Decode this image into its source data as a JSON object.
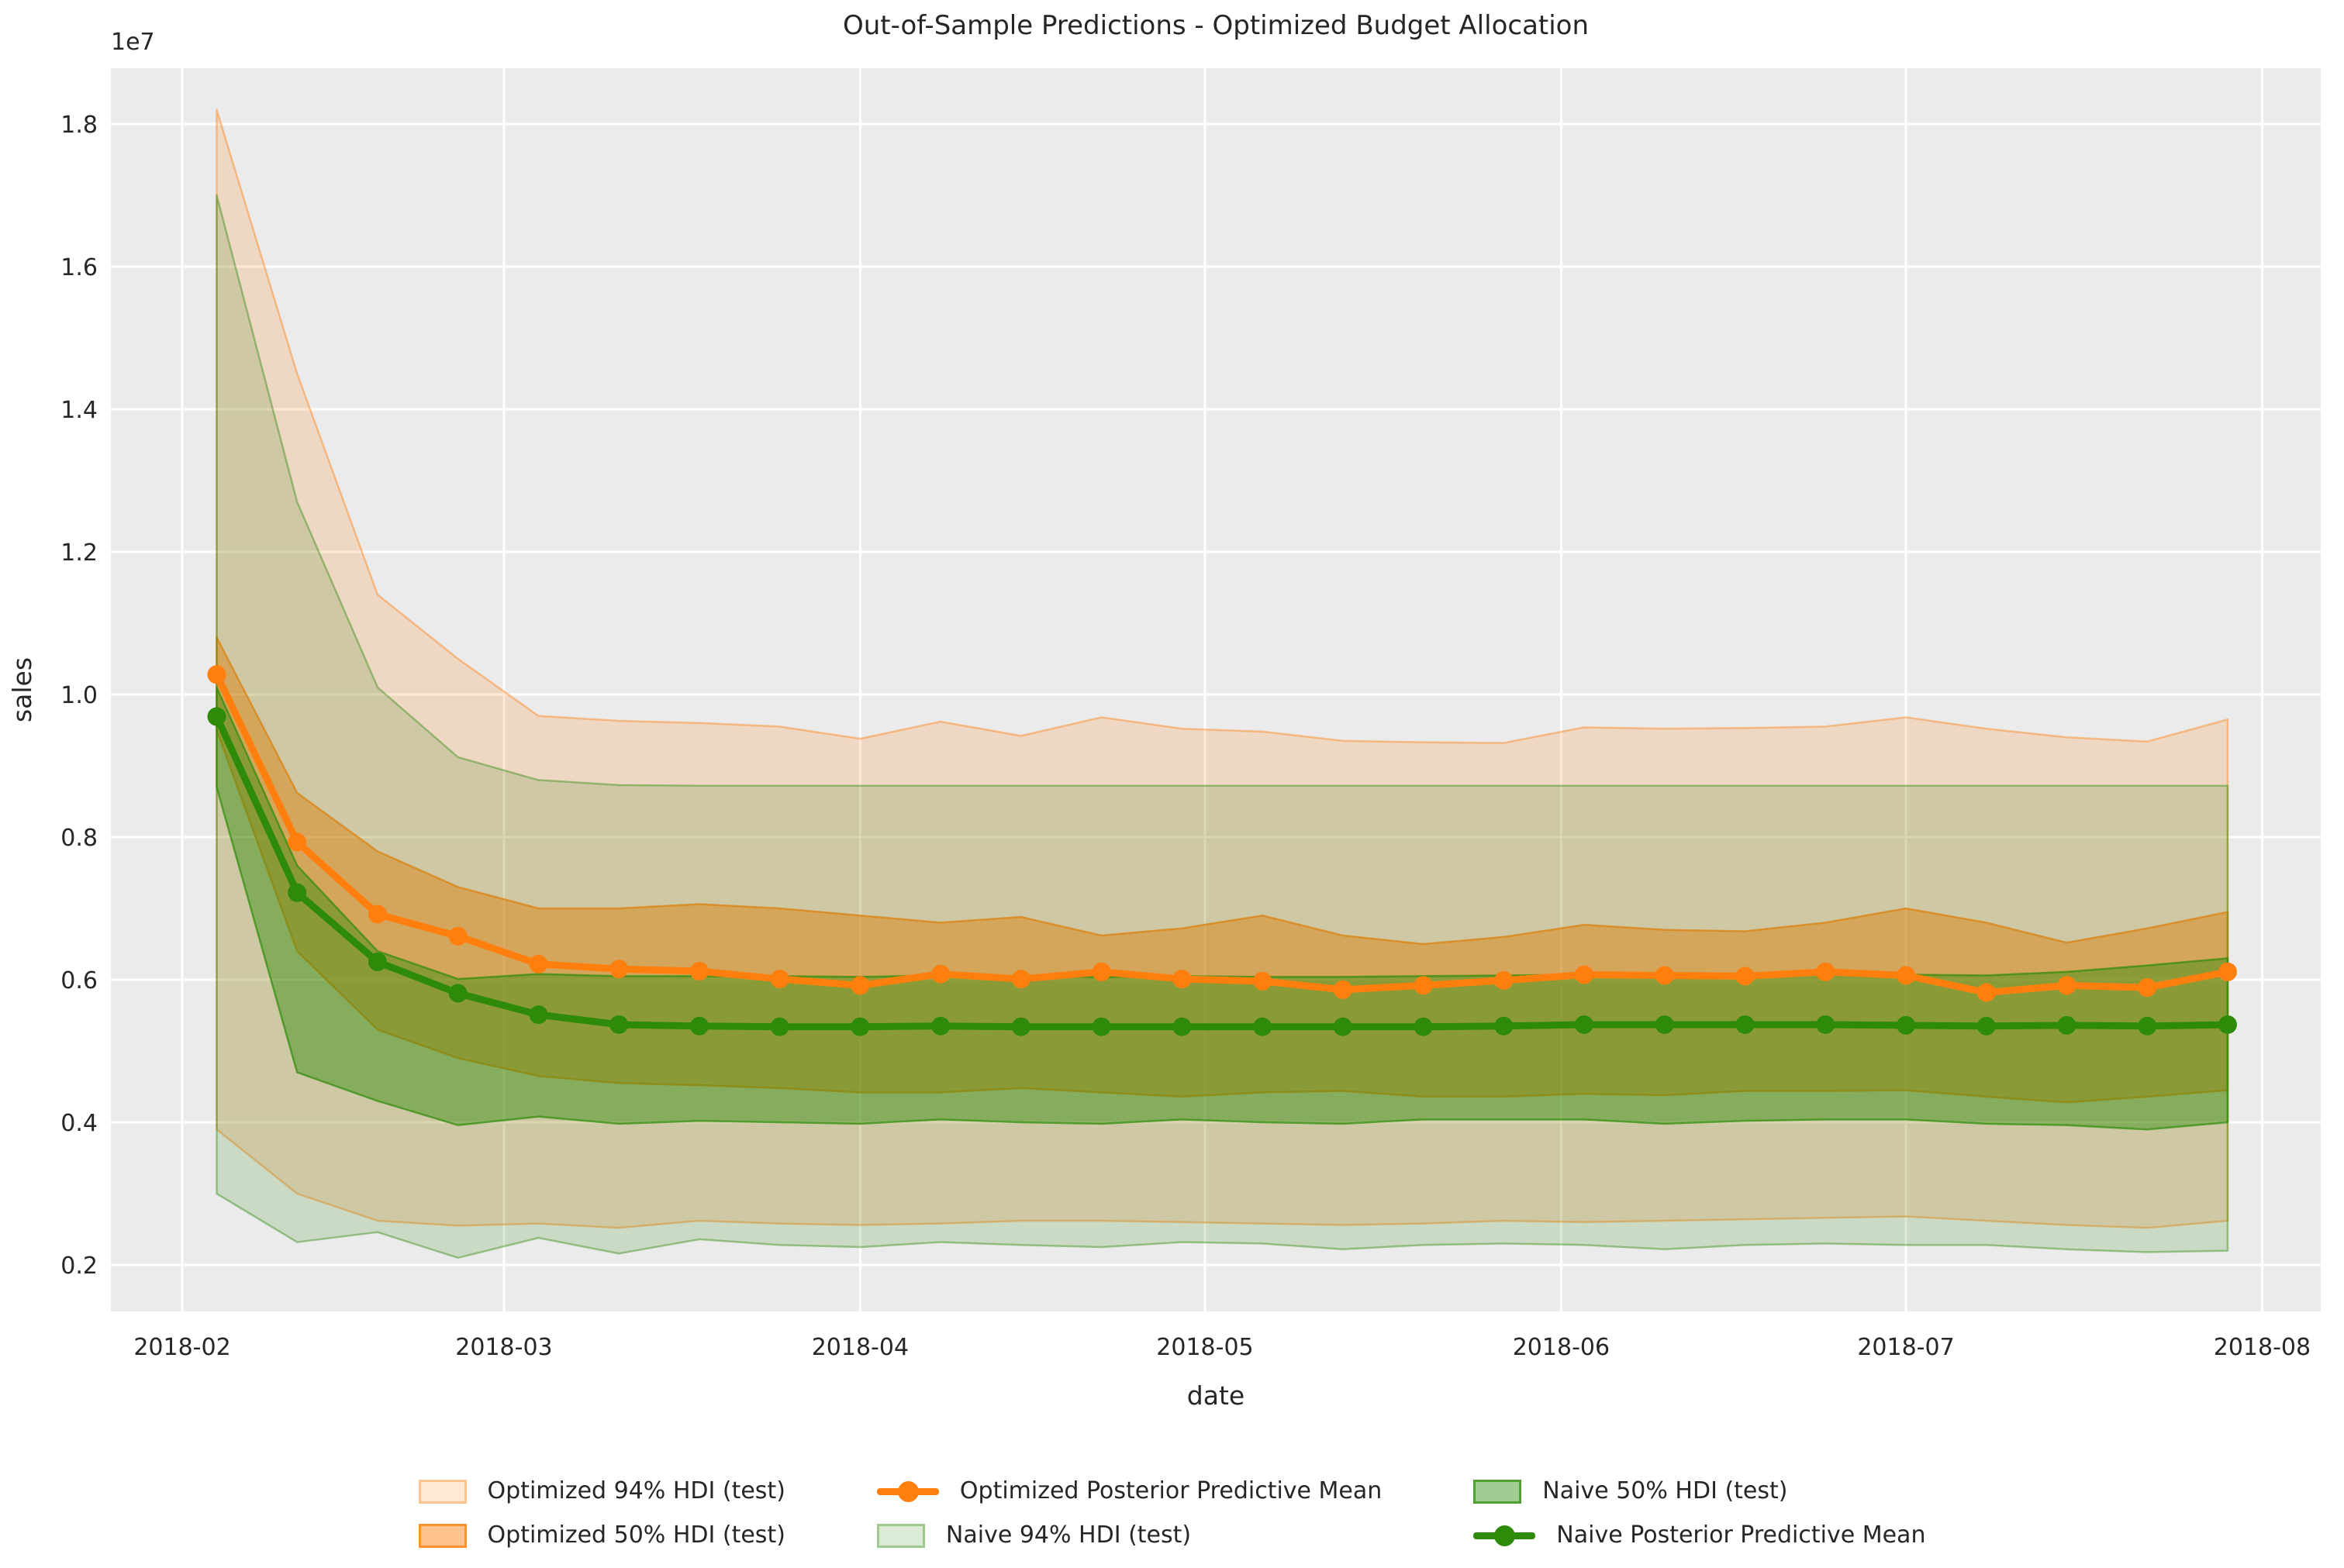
{
  "title": "Out-of-Sample Predictions - Optimized Budget Allocation",
  "axes": {
    "xlabel": "date",
    "ylabel": "sales",
    "offset_label": "1e7",
    "x_ticks": [
      {
        "label": "2018-02",
        "day": 0
      },
      {
        "label": "2018-03",
        "day": 28
      },
      {
        "label": "2018-04",
        "day": 59
      },
      {
        "label": "2018-05",
        "day": 89
      },
      {
        "label": "2018-06",
        "day": 120
      },
      {
        "label": "2018-07",
        "day": 150
      },
      {
        "label": "2018-08",
        "day": 181
      }
    ],
    "y_ticks": [
      {
        "label": "0.2",
        "value": 0.2
      },
      {
        "label": "0.4",
        "value": 0.4
      },
      {
        "label": "0.6",
        "value": 0.6
      },
      {
        "label": "0.8",
        "value": 0.8
      },
      {
        "label": "1.0",
        "value": 1.0
      },
      {
        "label": "1.2",
        "value": 1.2
      },
      {
        "label": "1.4",
        "value": 1.4
      },
      {
        "label": "1.6",
        "value": 1.6
      },
      {
        "label": "1.8",
        "value": 1.8
      }
    ]
  },
  "colors": {
    "orange": "#ff7f0e",
    "green": "#2e8b09",
    "plot_background": "#ebebeb",
    "grid": "#ffffff",
    "text": "#262626",
    "figure_background": "#ffffff"
  },
  "legend": {
    "items": [
      {
        "label": "Optimized 94% HDI (test)"
      },
      {
        "label": "Optimized 50% HDI (test)"
      },
      {
        "label": "Optimized Posterior Predictive Mean"
      },
      {
        "label": "Naive 94% HDI (test)"
      },
      {
        "label": "Naive 50% HDI (test)"
      },
      {
        "label": "Naive Posterior Predictive Mean"
      }
    ]
  },
  "chart_data": {
    "type": "line",
    "title": "Out-of-Sample Predictions - Optimized Budget Allocation",
    "xlabel": "date",
    "ylabel": "sales",
    "y_scale_factor": "1e7",
    "ylim": [
      0.135,
      1.878
    ],
    "x_range": [
      "2018-02",
      "2018-08"
    ],
    "grid": true,
    "legend_position": "bottom",
    "x_dates": [
      "2018-02-04",
      "2018-02-11",
      "2018-02-18",
      "2018-02-25",
      "2018-03-04",
      "2018-03-11",
      "2018-03-18",
      "2018-03-25",
      "2018-04-01",
      "2018-04-08",
      "2018-04-15",
      "2018-04-22",
      "2018-04-29",
      "2018-05-06",
      "2018-05-13",
      "2018-05-20",
      "2018-05-27",
      "2018-06-03",
      "2018-06-10",
      "2018-06-17",
      "2018-06-24",
      "2018-07-01",
      "2018-07-08",
      "2018-07-15",
      "2018-07-22",
      "2018-07-29"
    ],
    "x_days": [
      3,
      10,
      17,
      24,
      31,
      38,
      45,
      52,
      59,
      66,
      73,
      80,
      87,
      94,
      101,
      108,
      115,
      122,
      129,
      136,
      143,
      150,
      157,
      164,
      171,
      178
    ],
    "series": [
      {
        "name": "Optimized Posterior Predictive Mean",
        "color": "orange",
        "values": [
          1.028,
          0.793,
          0.692,
          0.661,
          0.622,
          0.615,
          0.612,
          0.601,
          0.592,
          0.608,
          0.601,
          0.611,
          0.601,
          0.598,
          0.586,
          0.592,
          0.599,
          0.607,
          0.606,
          0.605,
          0.611,
          0.606,
          0.582,
          0.592,
          0.589,
          0.611
        ]
      },
      {
        "name": "Naive Posterior Predictive Mean",
        "color": "green",
        "values": [
          0.969,
          0.722,
          0.625,
          0.581,
          0.551,
          0.537,
          0.535,
          0.534,
          0.534,
          0.535,
          0.534,
          0.534,
          0.534,
          0.534,
          0.534,
          0.534,
          0.535,
          0.537,
          0.537,
          0.537,
          0.537,
          0.536,
          0.535,
          0.536,
          0.535,
          0.537
        ]
      }
    ],
    "bands": [
      {
        "name": "Optimized 94% HDI (test)",
        "color": "orange",
        "alpha": 0.18,
        "upper": [
          1.82,
          1.45,
          1.14,
          1.05,
          0.97,
          0.963,
          0.96,
          0.955,
          0.938,
          0.962,
          0.942,
          0.968,
          0.952,
          0.948,
          0.935,
          0.933,
          0.932,
          0.954,
          0.952,
          0.953,
          0.955,
          0.968,
          0.952,
          0.94,
          0.934,
          0.965
        ],
        "lower": [
          0.39,
          0.3,
          0.262,
          0.255,
          0.258,
          0.252,
          0.262,
          0.258,
          0.256,
          0.258,
          0.262,
          0.262,
          0.26,
          0.258,
          0.256,
          0.258,
          0.262,
          0.26,
          0.262,
          0.264,
          0.266,
          0.268,
          0.262,
          0.256,
          0.252,
          0.262
        ]
      },
      {
        "name": "Optimized 50% HDI (test)",
        "color": "orange",
        "alpha": 0.48,
        "upper": [
          1.08,
          0.862,
          0.78,
          0.73,
          0.7,
          0.7,
          0.706,
          0.7,
          0.69,
          0.68,
          0.688,
          0.662,
          0.672,
          0.69,
          0.662,
          0.65,
          0.66,
          0.677,
          0.67,
          0.668,
          0.68,
          0.7,
          0.68,
          0.652,
          0.672,
          0.695
        ],
        "lower": [
          0.95,
          0.64,
          0.53,
          0.49,
          0.465,
          0.455,
          0.452,
          0.448,
          0.442,
          0.442,
          0.448,
          0.442,
          0.436,
          0.442,
          0.444,
          0.436,
          0.436,
          0.44,
          0.438,
          0.444,
          0.444,
          0.445,
          0.436,
          0.428,
          0.436,
          0.445
        ]
      },
      {
        "name": "Naive 94% HDI (test)",
        "color": "green",
        "alpha": 0.17,
        "upper": [
          1.7,
          1.27,
          1.01,
          0.912,
          0.88,
          0.873,
          0.872,
          0.872,
          0.872,
          0.872,
          0.872,
          0.872,
          0.872,
          0.872,
          0.872,
          0.872,
          0.872,
          0.872,
          0.872,
          0.872,
          0.872,
          0.872,
          0.872,
          0.872,
          0.872,
          0.872
        ],
        "lower": [
          0.3,
          0.232,
          0.246,
          0.21,
          0.238,
          0.216,
          0.236,
          0.228,
          0.225,
          0.232,
          0.228,
          0.225,
          0.232,
          0.23,
          0.222,
          0.228,
          0.23,
          0.228,
          0.222,
          0.228,
          0.23,
          0.228,
          0.228,
          0.222,
          0.218,
          0.22
        ]
      },
      {
        "name": "Naive 50% HDI (test)",
        "color": "green",
        "alpha": 0.45,
        "upper": [
          1.01,
          0.76,
          0.64,
          0.601,
          0.608,
          0.605,
          0.605,
          0.605,
          0.604,
          0.606,
          0.605,
          0.604,
          0.605,
          0.604,
          0.604,
          0.605,
          0.606,
          0.607,
          0.606,
          0.606,
          0.607,
          0.607,
          0.606,
          0.611,
          0.62,
          0.63
        ],
        "lower": [
          0.87,
          0.47,
          0.43,
          0.396,
          0.408,
          0.398,
          0.402,
          0.4,
          0.398,
          0.404,
          0.4,
          0.398,
          0.404,
          0.4,
          0.398,
          0.404,
          0.404,
          0.404,
          0.398,
          0.402,
          0.404,
          0.404,
          0.398,
          0.396,
          0.39,
          0.4
        ]
      }
    ]
  }
}
